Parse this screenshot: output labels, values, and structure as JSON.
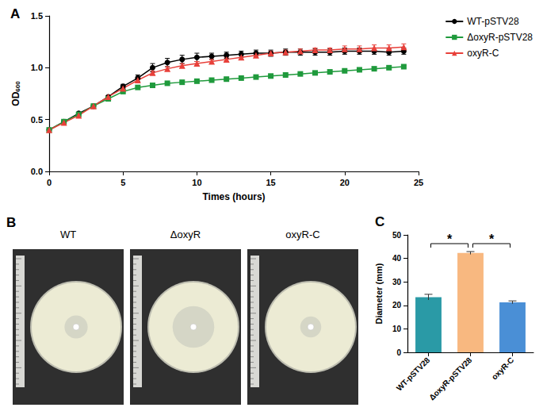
{
  "chart_data": [
    {
      "panel": "A",
      "type": "line",
      "x": [
        0,
        1,
        2,
        3,
        4,
        5,
        6,
        7,
        8,
        9,
        10,
        11,
        12,
        13,
        14,
        15,
        16,
        17,
        18,
        19,
        20,
        21,
        22,
        23,
        24
      ],
      "xlim": [
        0,
        25
      ],
      "xticks": [
        0,
        5,
        10,
        15,
        20,
        25
      ],
      "ylim": [
        0,
        1.5
      ],
      "yticks": [
        {
          "value": 0,
          "label": "0.0"
        },
        0.5,
        {
          "value": 1,
          "label": "1.0"
        },
        1.5
      ],
      "x_label": "Times (hours)",
      "y_label": "OD600",
      "legend": "right",
      "grid": false,
      "series": [
        {
          "name": "WT-pSTV28",
          "color": "#000000",
          "marker": "circle",
          "values": [
            0.4,
            0.48,
            0.56,
            0.63,
            0.72,
            0.82,
            0.9,
            1.0,
            1.05,
            1.08,
            1.1,
            1.11,
            1.12,
            1.13,
            1.14,
            1.14,
            1.15,
            1.15,
            1.15,
            1.15,
            1.16,
            1.16,
            1.16,
            1.15,
            1.16
          ],
          "errors": [
            0.01,
            0.01,
            0.01,
            0.01,
            0.01,
            0.02,
            0.03,
            0.04,
            0.04,
            0.04,
            0.04,
            0.03,
            0.03,
            0.03,
            0.03,
            0.03,
            0.03,
            0.03,
            0.03,
            0.03,
            0.03,
            0.03,
            0.03,
            0.03,
            0.03
          ]
        },
        {
          "name": "ΔoxyR-pSTV28",
          "color": "#1f9a3c",
          "marker": "square",
          "values": [
            0.4,
            0.48,
            0.55,
            0.63,
            0.7,
            0.77,
            0.81,
            0.83,
            0.85,
            0.86,
            0.87,
            0.88,
            0.89,
            0.9,
            0.91,
            0.92,
            0.93,
            0.94,
            0.95,
            0.96,
            0.97,
            0.98,
            0.99,
            1.0,
            1.01
          ],
          "errors": [
            0.01,
            0.01,
            0.01,
            0.01,
            0.01,
            0.01,
            0.01,
            0.01,
            0.01,
            0.01,
            0.01,
            0.01,
            0.01,
            0.01,
            0.01,
            0.01,
            0.01,
            0.01,
            0.01,
            0.01,
            0.01,
            0.01,
            0.01,
            0.01,
            0.01
          ]
        },
        {
          "name": "oxyR-C",
          "color": "#e8403a",
          "marker": "triangle",
          "values": [
            0.4,
            0.47,
            0.54,
            0.63,
            0.72,
            0.8,
            0.88,
            0.95,
            0.99,
            1.02,
            1.04,
            1.06,
            1.08,
            1.1,
            1.12,
            1.14,
            1.15,
            1.16,
            1.17,
            1.17,
            1.18,
            1.18,
            1.19,
            1.19,
            1.2
          ],
          "errors": [
            0.01,
            0.01,
            0.01,
            0.01,
            0.01,
            0.01,
            0.02,
            0.02,
            0.02,
            0.02,
            0.02,
            0.02,
            0.02,
            0.02,
            0.02,
            0.02,
            0.02,
            0.02,
            0.02,
            0.02,
            0.03,
            0.03,
            0.03,
            0.03,
            0.03
          ]
        }
      ]
    },
    {
      "panel": "C",
      "type": "bar",
      "categories": [
        "WT-pSTV28",
        "ΔoxyR-pSTV28",
        "oxyR-C"
      ],
      "values": [
        23.5,
        42.3,
        21.3
      ],
      "errors": [
        1.2,
        0.6,
        0.6
      ],
      "colors": [
        "#2a9aa6",
        "#f8b880",
        "#4a8fd6"
      ],
      "ylim": [
        0,
        50
      ],
      "yticks": [
        0,
        10,
        20,
        30,
        40,
        50
      ],
      "y_label": "Diameter (mm)",
      "grid": false,
      "annotations": [
        {
          "text": "*",
          "between": [
            0,
            1
          ]
        },
        {
          "text": "*",
          "between": [
            1,
            2
          ]
        }
      ]
    }
  ],
  "photos": {
    "panel": "B",
    "labels": [
      "WT",
      "ΔoxyR",
      "oxyR-C"
    ]
  }
}
